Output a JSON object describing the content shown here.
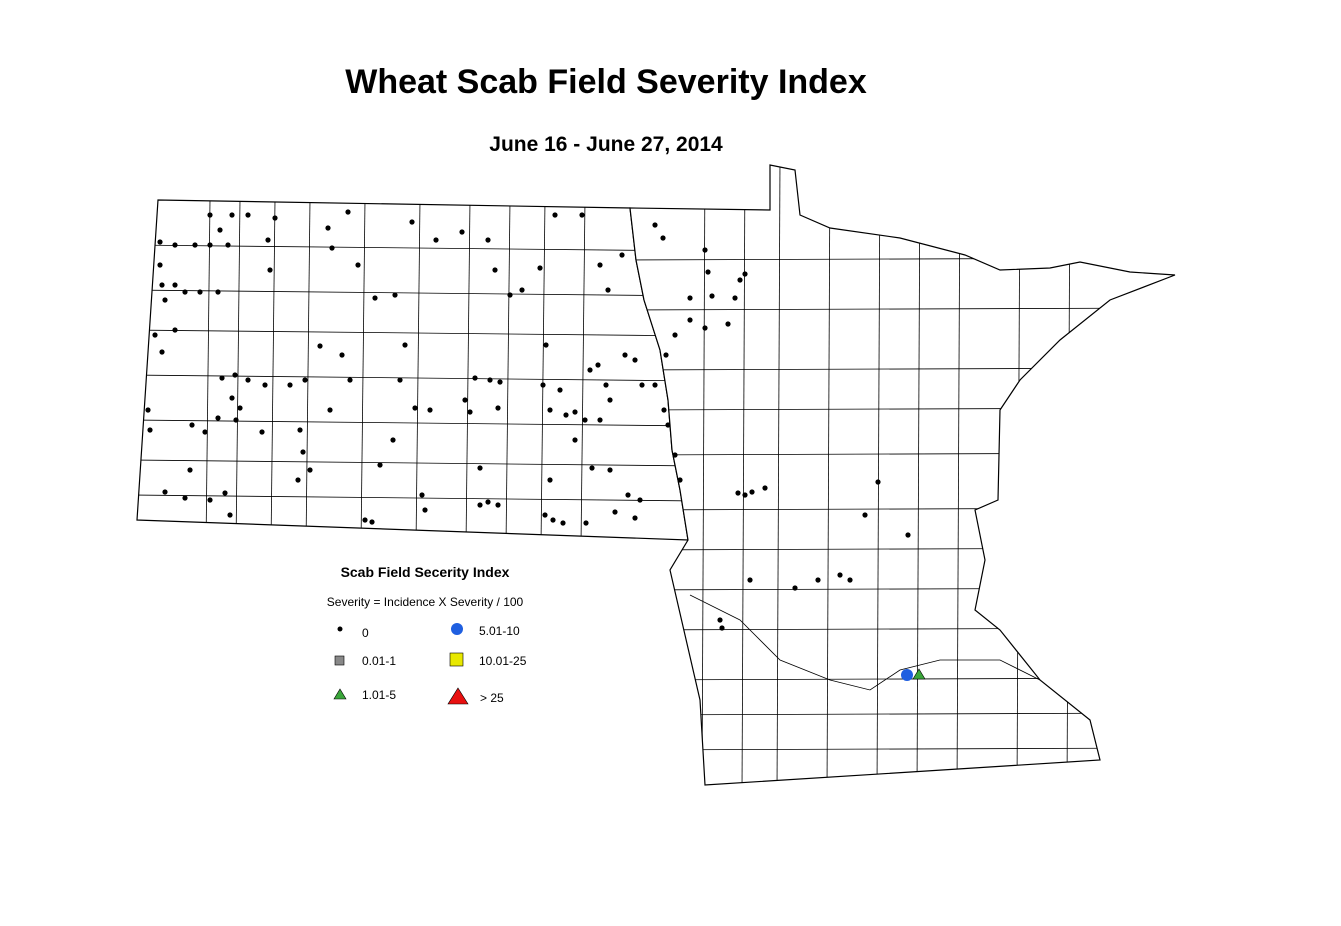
{
  "title": "Wheat Scab Field Severity Index",
  "subtitle": "June 16 - June 27, 2014",
  "legend": {
    "title": "Scab Field Secerity Index",
    "subtitle": "Severity = Incidence X Severity / 100",
    "items": [
      {
        "label": "0"
      },
      {
        "label": "0.01-1"
      },
      {
        "label": "1.01-5"
      },
      {
        "label": "5.01-10"
      },
      {
        "label": "10.01-25"
      },
      {
        "label": "> 25"
      }
    ]
  }
}
